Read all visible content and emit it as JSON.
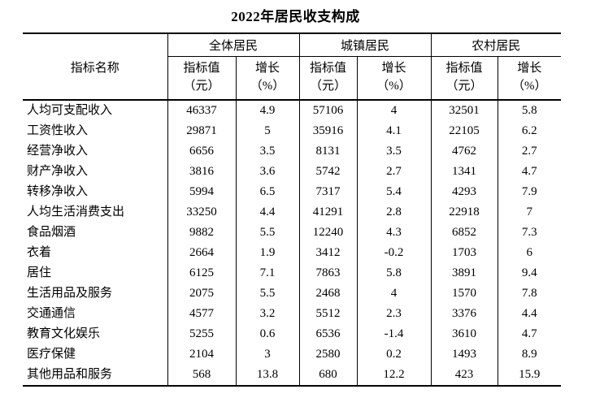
{
  "title": "2022年居民收支构成",
  "table": {
    "corner_header": "指标名称",
    "groups": [
      {
        "label": "全体居民"
      },
      {
        "label": "城镇居民"
      },
      {
        "label": "农村居民"
      }
    ],
    "sub_headers": {
      "value_line1": "指标值",
      "value_line2": "（元）",
      "growth_line1": "增长",
      "growth_line2": "（%）"
    },
    "rows": [
      {
        "label": "人均可支配收入",
        "values": [
          "46337",
          "4.9",
          "57106",
          "4",
          "32501",
          "5.8"
        ]
      },
      {
        "label": "工资性收入",
        "values": [
          "29871",
          "5",
          "35916",
          "4.1",
          "22105",
          "6.2"
        ]
      },
      {
        "label": "经营净收入",
        "values": [
          "6656",
          "3.5",
          "8131",
          "3.5",
          "4762",
          "2.7"
        ]
      },
      {
        "label": "财产净收入",
        "values": [
          "3816",
          "3.6",
          "5742",
          "2.7",
          "1341",
          "4.7"
        ]
      },
      {
        "label": "转移净收入",
        "values": [
          "5994",
          "6.5",
          "7317",
          "5.4",
          "4293",
          "7.9"
        ]
      },
      {
        "label": "人均生活消费支出",
        "values": [
          "33250",
          "4.4",
          "41291",
          "2.8",
          "22918",
          "7"
        ]
      },
      {
        "label": "食品烟酒",
        "values": [
          "9882",
          "5.5",
          "12240",
          "4.3",
          "6852",
          "7.3"
        ]
      },
      {
        "label": "衣着",
        "values": [
          "2664",
          "1.9",
          "3412",
          "-0.2",
          "1703",
          "6"
        ]
      },
      {
        "label": "居住",
        "values": [
          "6125",
          "7.1",
          "7863",
          "5.8",
          "3891",
          "9.4"
        ]
      },
      {
        "label": "生活用品及服务",
        "values": [
          "2075",
          "5.5",
          "2468",
          "4",
          "1570",
          "7.8"
        ]
      },
      {
        "label": "交通通信",
        "values": [
          "4577",
          "3.2",
          "5512",
          "2.3",
          "3376",
          "4.4"
        ]
      },
      {
        "label": "教育文化娱乐",
        "values": [
          "5255",
          "0.6",
          "6536",
          "-1.4",
          "3610",
          "4.7"
        ]
      },
      {
        "label": "医疗保健",
        "values": [
          "2104",
          "3",
          "2580",
          "0.2",
          "1493",
          "8.9"
        ]
      },
      {
        "label": "其他用品和服务",
        "values": [
          "568",
          "13.8",
          "680",
          "12.2",
          "423",
          "15.9"
        ]
      }
    ]
  }
}
